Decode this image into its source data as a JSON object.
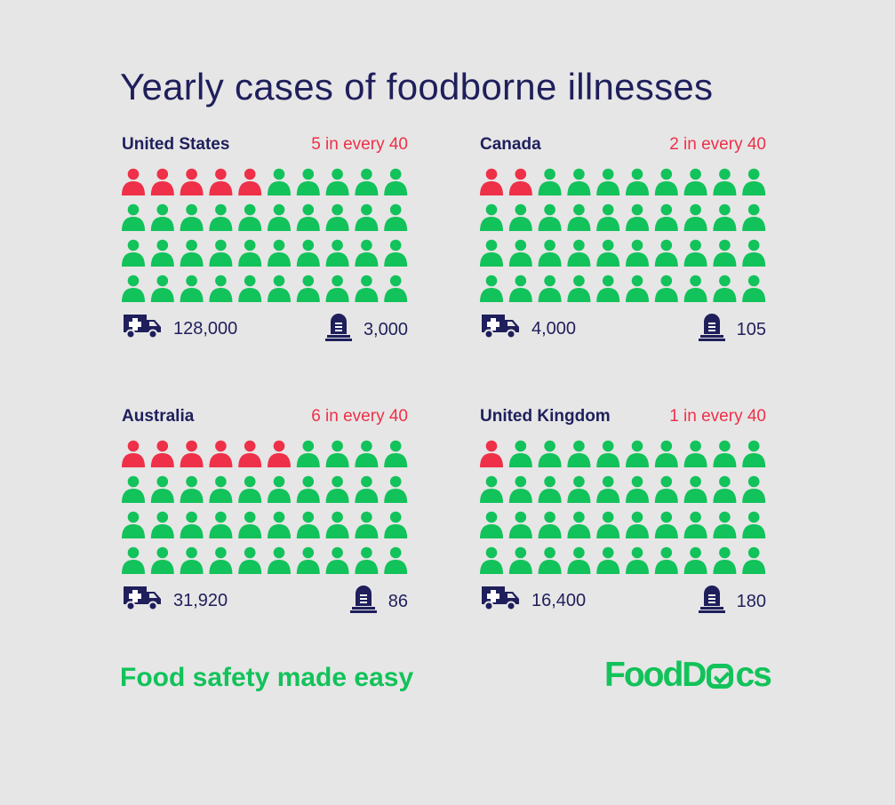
{
  "title": "Yearly cases of foodborne illnesses",
  "colors": {
    "ill": "#ee3048",
    "healthy": "#12c25a",
    "text": "#1f1f5c",
    "background": "#e6e6e6"
  },
  "icons": {
    "person": "person-icon",
    "hospitalized": "ambulance-icon",
    "deaths": "tombstone-icon"
  },
  "chart_data": {
    "type": "pictogram",
    "title": "Yearly cases of foodborne illnesses",
    "total_per_panel": 40,
    "grid": {
      "rows": 4,
      "columns": 10
    },
    "panels": [
      {
        "country": "United States",
        "ratio_label": "5 in every 40",
        "ill": 5,
        "hospitalizations": "128,000",
        "deaths": "3,000"
      },
      {
        "country": "Canada",
        "ratio_label": "2 in every 40",
        "ill": 2,
        "hospitalizations": "4,000",
        "deaths": "105"
      },
      {
        "country": "Australia",
        "ratio_label": "6 in every 40",
        "ill": 6,
        "hospitalizations": "31,920",
        "deaths": "86"
      },
      {
        "country": "United Kingdom",
        "ratio_label": "1 in every 40",
        "ill": 1,
        "hospitalizations": "16,400",
        "deaths": "180"
      }
    ]
  },
  "footer": {
    "tagline": "Food safety made easy",
    "logo": "FoodDocs"
  }
}
